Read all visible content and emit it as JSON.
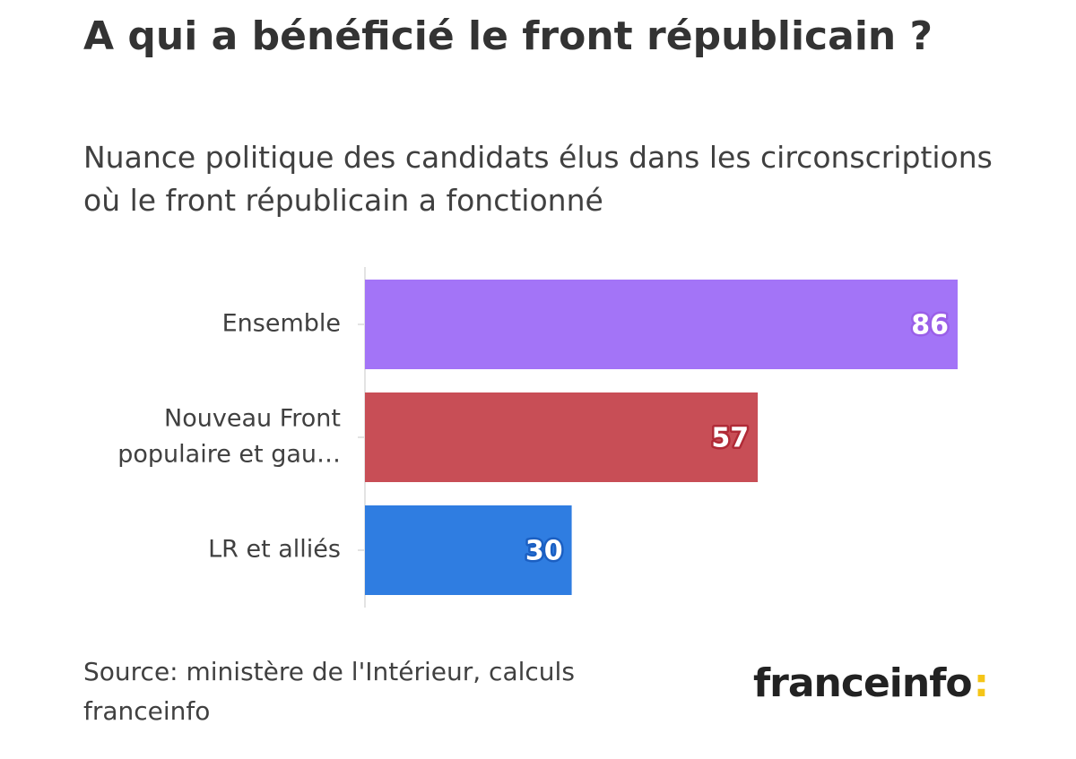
{
  "header": {
    "title": "A qui a bénéficié le front républicain ?",
    "subtitle": "Nuance politique des candidats élus dans les circonscriptions où le front républicain a fonctionné"
  },
  "footer": {
    "source": "Source: ministère de l'Intérieur, calculs franceinfo",
    "logo_text": "franceinfo",
    "logo_colon": ":"
  },
  "chart_data": {
    "type": "bar",
    "orientation": "horizontal",
    "categories": [
      "Ensemble",
      "Nouveau Front populaire et gau…",
      "LR et alliés"
    ],
    "category_lines": [
      [
        "Ensemble"
      ],
      [
        "Nouveau Front",
        "populaire et gau…"
      ],
      [
        "LR et alliés"
      ]
    ],
    "values": [
      86,
      57,
      30
    ],
    "colors": [
      "#a374f7",
      "#c84e56",
      "#2f7de1"
    ],
    "label_outline_colors": [
      "#9a5fe8",
      "#b02a36",
      "#1b5fc2"
    ],
    "xlim": [
      0,
      86
    ],
    "grid": false,
    "legend": "none",
    "data_labels": true
  }
}
